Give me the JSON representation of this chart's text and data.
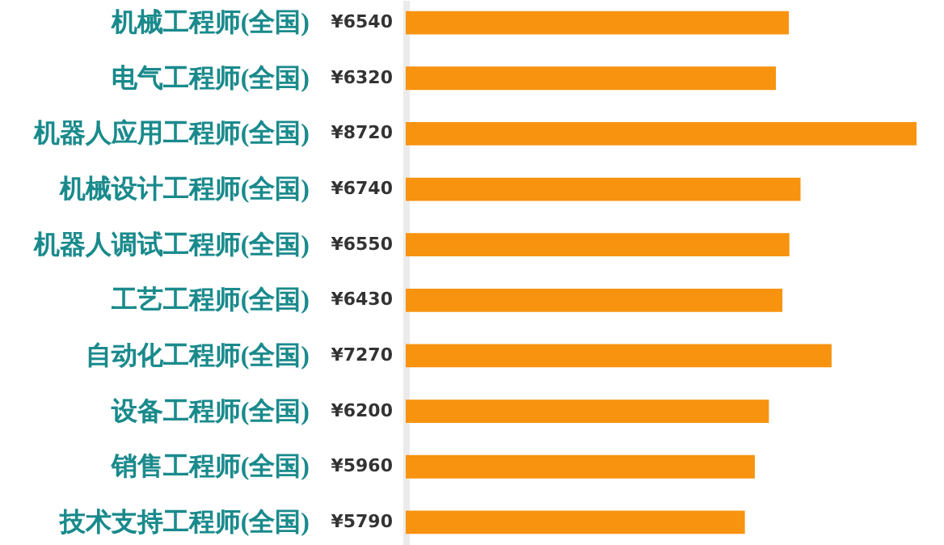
{
  "chart_data": {
    "type": "bar",
    "orientation": "horizontal",
    "categories": [
      "机械工程师(全国)",
      "电气工程师(全国)",
      "机器人应用工程师(全国)",
      "机械设计工程师(全国)",
      "机器人调试工程师(全国)",
      "工艺工程师(全国)",
      "自动化工程师(全国)",
      "设备工程师(全国)",
      "销售工程师(全国)",
      "技术支持工程师(全国)"
    ],
    "values": [
      6540,
      6320,
      8720,
      6740,
      6550,
      6430,
      7270,
      6200,
      5960,
      5790
    ],
    "value_labels": [
      "¥6540",
      "¥6320",
      "¥8720",
      "¥6740",
      "¥6550",
      "¥6430",
      "¥7270",
      "¥6200",
      "¥5960",
      "¥5790"
    ],
    "color": "#f7930f",
    "xlim": [
      0,
      8720
    ],
    "tick_labels": "y",
    "grid": false
  }
}
